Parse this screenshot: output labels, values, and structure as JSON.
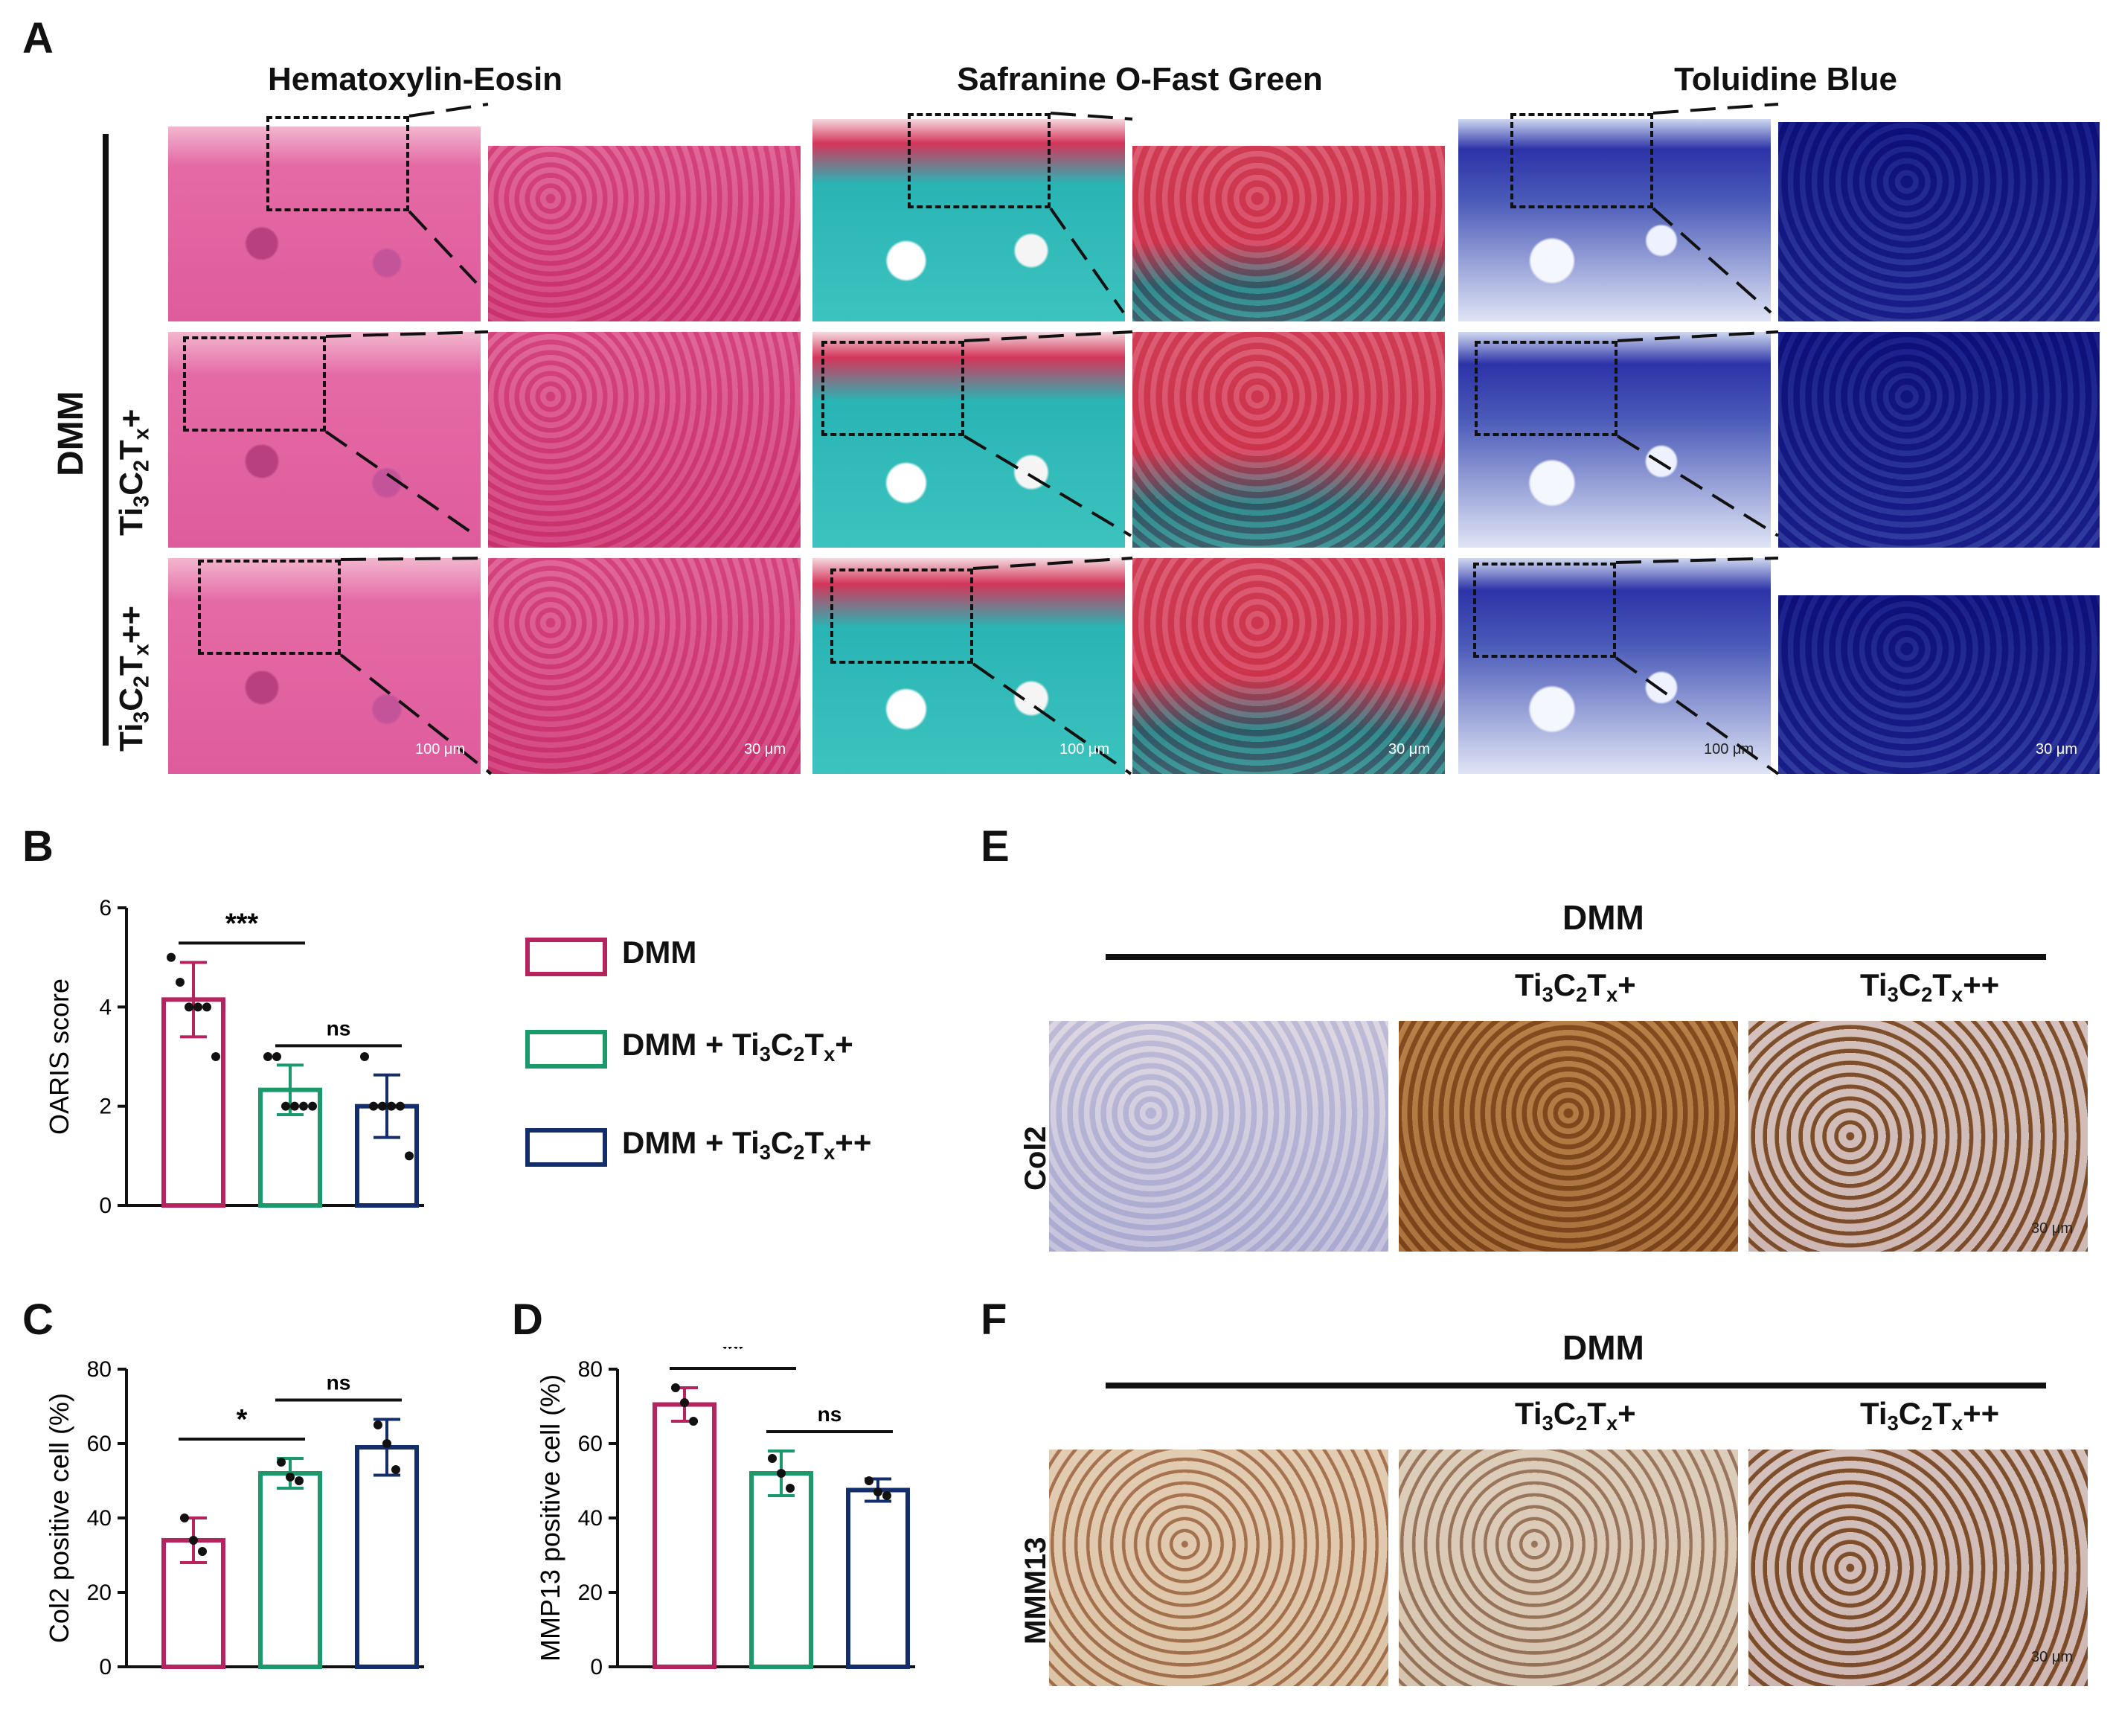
{
  "panels": {
    "A": "A",
    "B": "B",
    "C": "C",
    "D": "D",
    "E": "E",
    "F": "F"
  },
  "panelA": {
    "stains": [
      "Hematoxylin-Eosin",
      "Safranine O-Fast Green",
      "Toluidine Blue"
    ],
    "group_label": "DMM",
    "row_labels": [
      {
        "base": "Ti",
        "s1": "3",
        "c": "C",
        "s2": "2",
        "t": "T",
        "s3": "x",
        "suffix": "+"
      },
      {
        "base": "Ti",
        "s1": "3",
        "c": "C",
        "s2": "2",
        "t": "T",
        "s3": "x",
        "suffix": "++"
      }
    ],
    "scale_100": "100 μm",
    "scale_30": "30 μm"
  },
  "legend": [
    {
      "name": "DMM",
      "color": "#b5245f",
      "prefix": "DMM",
      "suffix": ""
    },
    {
      "name": "DMM + Ti3C2Tx+",
      "color": "#1a9a6a",
      "prefix": "DMM + Ti",
      "suffix": "+"
    },
    {
      "name": "DMM + Ti3C2Tx++",
      "color": "#142d6b",
      "prefix": "DMM + Ti",
      "suffix": "++"
    }
  ],
  "chart_data": [
    {
      "panel": "B",
      "type": "bar",
      "ylabel": "OARIS score",
      "ylim": [
        0,
        6
      ],
      "yticks": [
        0,
        2,
        4,
        6
      ],
      "categories": [
        "DMM",
        "DMM + Ti3C2Tx+",
        "DMM + Ti3C2Tx++"
      ],
      "values": [
        4.15,
        2.33,
        2.0
      ],
      "errors": [
        0.75,
        0.5,
        0.63
      ],
      "points": [
        [
          5,
          4.5,
          4,
          4,
          4,
          3
        ]
      ],
      "points_by_group": [
        [
          5,
          4.5,
          4,
          4,
          4,
          3
        ],
        [
          3,
          3,
          2,
          2,
          2,
          2
        ],
        [
          3,
          2,
          2,
          2,
          2,
          1
        ]
      ],
      "significance": [
        {
          "from": 0,
          "to": 1,
          "label": "***"
        },
        {
          "from": 1,
          "to": 2,
          "label": "ns"
        }
      ]
    },
    {
      "panel": "C",
      "type": "bar",
      "ylabel": "Col2 positive cell (%)",
      "ylim": [
        0,
        80
      ],
      "yticks": [
        0,
        20,
        40,
        60,
        80
      ],
      "categories": [
        "DMM",
        "DMM + Ti3C2Tx+",
        "DMM + Ti3C2Tx++"
      ],
      "values": [
        34,
        52,
        59
      ],
      "errors": [
        6,
        4,
        7.5
      ],
      "points_by_group": [
        [
          40,
          34,
          31
        ],
        [
          55,
          51,
          50
        ],
        [
          65,
          60,
          53
        ]
      ],
      "significance": [
        {
          "from": 0,
          "to": 1,
          "label": "*"
        },
        {
          "from": 1,
          "to": 2,
          "label": "ns"
        }
      ]
    },
    {
      "panel": "D",
      "type": "bar",
      "ylabel": "MMP13 positive cell (%)",
      "ylim": [
        0,
        80
      ],
      "yticks": [
        0,
        20,
        40,
        60,
        80
      ],
      "categories": [
        "DMM",
        "DMM + Ti3C2Tx+",
        "DMM + Ti3C2Tx++"
      ],
      "values": [
        70.5,
        52,
        47.5
      ],
      "errors": [
        4.5,
        6,
        3
      ],
      "points_by_group": [
        [
          75,
          71,
          66
        ],
        [
          56,
          52,
          48
        ],
        [
          50,
          47,
          46
        ]
      ],
      "significance": [
        {
          "from": 0,
          "to": 1,
          "label": "**"
        },
        {
          "from": 1,
          "to": 2,
          "label": "ns"
        }
      ]
    }
  ],
  "panelE": {
    "group": "DMM",
    "row_label": "Col2",
    "scale": "30 μm"
  },
  "panelF": {
    "group": "DMM",
    "row_label": "MMM13",
    "scale": "30 μm"
  },
  "ihc_cols": [
    {
      "base": "Ti",
      "s1": "3",
      "c": "C",
      "s2": "2",
      "t": "T",
      "s3": "x",
      "suffix": "+"
    },
    {
      "base": "Ti",
      "s1": "3",
      "c": "C",
      "s2": "2",
      "t": "T",
      "s3": "x",
      "suffix": "++"
    }
  ]
}
